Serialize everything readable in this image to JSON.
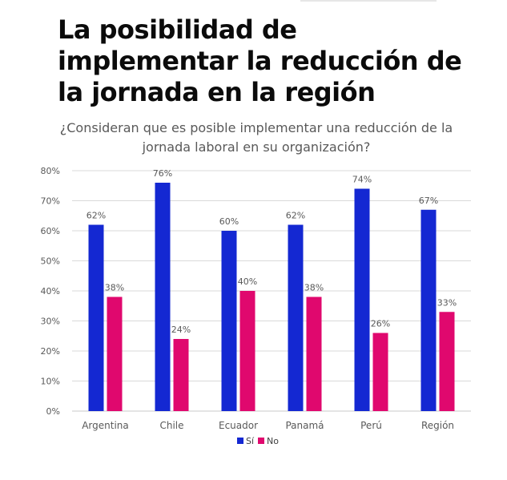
{
  "headline": "La posibilidad de implementar la reducción de la jornada en la región",
  "chart_data": {
    "type": "bar",
    "title": "¿Consideran que es posible implementar una reducción de la jornada laboral en su organización?",
    "categories": [
      "Argentina",
      "Chile",
      "Ecuador",
      "Panamá",
      "Perú",
      "Región"
    ],
    "series": [
      {
        "name": "Sí",
        "color": "#1428d2",
        "values": [
          62,
          76,
          60,
          62,
          74,
          67
        ],
        "labels": [
          "62%",
          "76%",
          "60%",
          "62%",
          "74%",
          "67%"
        ]
      },
      {
        "name": "No",
        "color": "#e0086e",
        "values": [
          38,
          24,
          40,
          38,
          26,
          33
        ],
        "labels": [
          "38%",
          "24%",
          "40%",
          "38%",
          "26%",
          "33%"
        ]
      }
    ],
    "ylim": [
      0,
      80
    ],
    "yticks": [
      "0%",
      "10%",
      "20%",
      "30%",
      "40%",
      "50%",
      "60%",
      "70%",
      "80%"
    ],
    "grid": true,
    "legend_position": "bottom"
  }
}
